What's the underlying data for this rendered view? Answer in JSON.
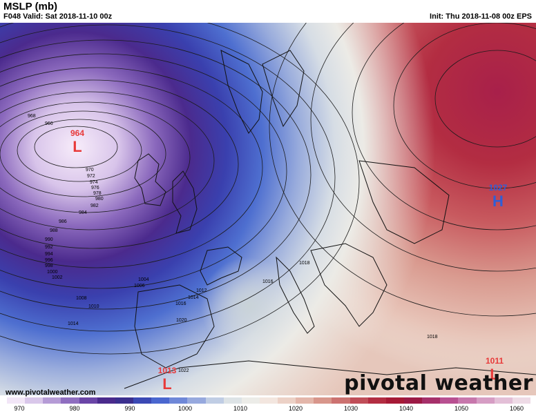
{
  "header": {
    "title": "MSLP (mb)",
    "valid": "F048 Valid: Sat 2018-11-10 00z",
    "init": "Init: Thu 2018-11-08 00z EPS"
  },
  "footer": {
    "website": "www.pivotalweather.com",
    "brand": "pivotal weather"
  },
  "colorbar": {
    "ticks": [
      "970",
      "980",
      "990",
      "1000",
      "1010",
      "1020",
      "1030",
      "1040",
      "1050",
      "1060"
    ],
    "colors": [
      "#f2e6f7",
      "#d9c7ea",
      "#b59bd6",
      "#8f6ec0",
      "#6a45a7",
      "#4a2a8c",
      "#3b2f8e",
      "#3b49b4",
      "#4a67cf",
      "#6f88d8",
      "#97a9de",
      "#c0cde4",
      "#dde3e6",
      "#ecece8",
      "#f3e6df",
      "#ecd1c6",
      "#e3b6aa",
      "#d8968b",
      "#cc7270",
      "#c04e58",
      "#b32d42",
      "#a61a36",
      "#9c1a45",
      "#a6306a",
      "#b85091",
      "#c777ac",
      "#d69dc4",
      "#e3bfd7",
      "#eedbe6"
    ]
  },
  "lows": [
    {
      "value": "964",
      "letter": "L",
      "color": "#e83a3a"
    },
    {
      "value": "1013",
      "letter": "L",
      "color": "#e83a3a"
    },
    {
      "value": "1011",
      "letter": "L",
      "color": "#e83a3a"
    }
  ],
  "highs": [
    {
      "value": "1027",
      "letter": "H",
      "color": "#2f5ed6"
    }
  ],
  "isobar_labels": [
    "968",
    "966",
    "970",
    "972",
    "974",
    "976",
    "978",
    "980",
    "982",
    "984",
    "986",
    "988",
    "990",
    "992",
    "994",
    "996",
    "998",
    "1000",
    "1002",
    "1004",
    "1006",
    "1008",
    "1010",
    "1012",
    "1014",
    "1014",
    "1016",
    "1016",
    "1018",
    "1018",
    "1020",
    "1022"
  ]
}
